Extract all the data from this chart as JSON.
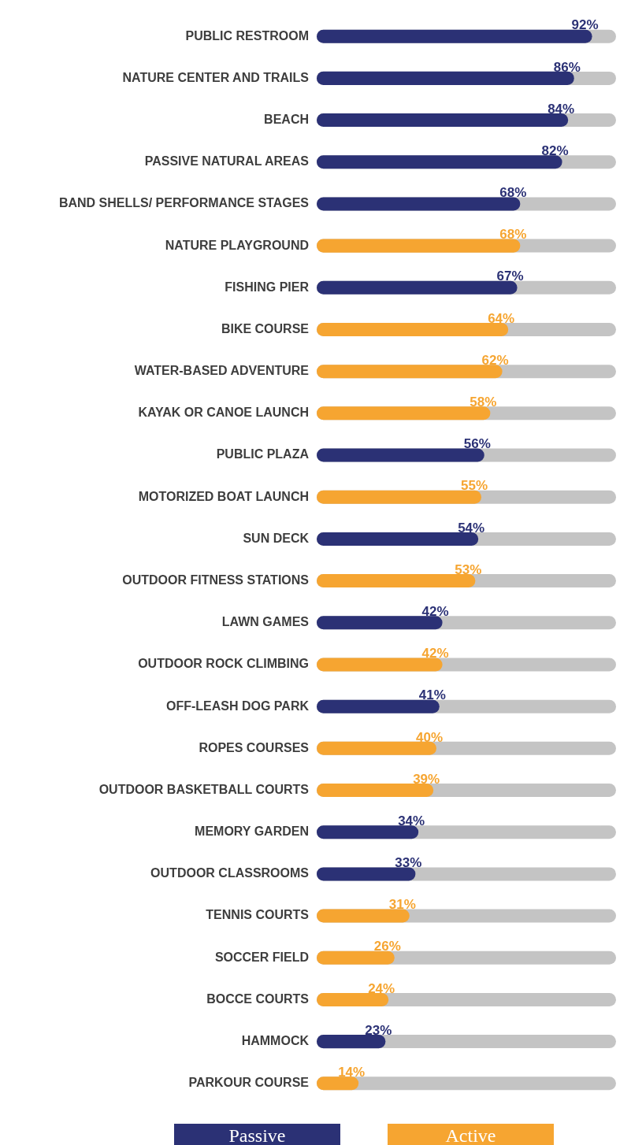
{
  "chart_data": {
    "type": "bar",
    "orientation": "horizontal",
    "stacked": true,
    "legend": "bottom",
    "tick_labels": "y",
    "xlim": [
      0,
      100
    ],
    "categories": [
      "PUBLIC RESTROOM",
      "NATURE CENTER AND TRAILS",
      "BEACH",
      "PASSIVE NATURAL AREAS",
      "BAND SHELLS/ PERFORMANCE STAGES",
      "NATURE PLAYGROUND",
      "FISHING PIER",
      "BIKE COURSE",
      "WATER-BASED ADVENTURE",
      "KAYAK OR CANOE LAUNCH",
      "PUBLIC PLAZA",
      "MOTORIZED BOAT LAUNCH",
      "SUN DECK",
      "OUTDOOR FITNESS STATIONS",
      "LAWN GAMES",
      "OUTDOOR ROCK CLIMBING",
      "OFF-LEASH DOG PARK",
      "ROPES COURSES",
      "OUTDOOR BASKETBALL COURTS",
      "MEMORY GARDEN",
      "OUTDOOR CLASSROOMS",
      "TENNIS COURTS",
      "SOCCER FIELD",
      "BOCCE COURTS",
      "HAMMOCK",
      "PARKOUR COURSE"
    ],
    "series": [
      {
        "name": "Passive",
        "color": "#2b3175",
        "values": [
          92,
          86,
          84,
          82,
          68,
          null,
          67,
          null,
          null,
          null,
          56,
          null,
          54,
          null,
          42,
          null,
          41,
          null,
          null,
          34,
          33,
          null,
          null,
          null,
          23,
          null
        ],
        "value_labels": [
          "92%",
          "86%",
          "84%",
          "82%",
          "68%",
          null,
          "67%",
          null,
          null,
          null,
          "56%",
          null,
          "54%",
          null,
          "42%",
          null,
          "41%",
          null,
          null,
          "34%",
          "33%",
          null,
          null,
          null,
          "23%",
          null
        ]
      },
      {
        "name": "Active",
        "color": "#f6a531",
        "values": [
          null,
          null,
          null,
          null,
          null,
          68,
          null,
          64,
          62,
          58,
          null,
          55,
          null,
          53,
          null,
          42,
          null,
          40,
          39,
          null,
          null,
          31,
          26,
          24,
          null,
          14
        ],
        "value_labels": [
          null,
          null,
          null,
          null,
          null,
          "68%",
          null,
          "64%",
          "62%",
          "58%",
          null,
          "55%",
          null,
          "53%",
          null,
          "42%",
          null,
          "40%",
          "39%",
          null,
          null,
          "31%",
          "26%",
          "24%",
          null,
          "14%"
        ]
      }
    ]
  }
}
